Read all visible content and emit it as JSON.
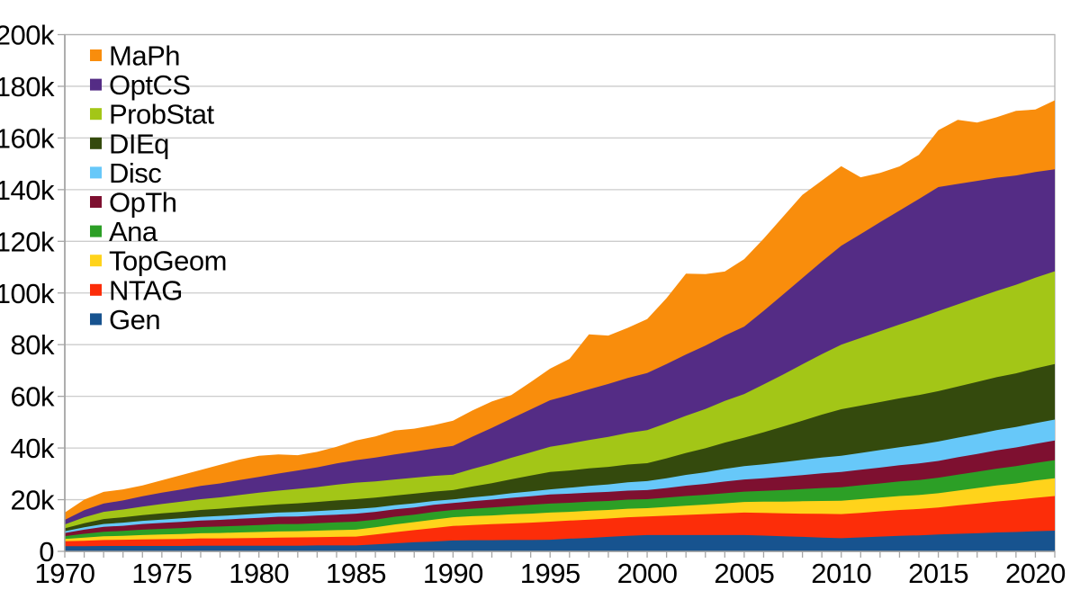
{
  "page": {
    "background": "#ffffff",
    "description": "Stacked area chart of item counts per category per year, 1970-2021"
  },
  "chart_data": {
    "type": "area",
    "stacked": true,
    "title": "",
    "xlabel": "",
    "ylabel": "",
    "unit": "thousands",
    "ylim": [
      0,
      200000
    ],
    "grid": "horizontal",
    "legend_position": "top-left",
    "x": [
      1970,
      1971,
      1972,
      1973,
      1974,
      1975,
      1976,
      1977,
      1978,
      1979,
      1980,
      1981,
      1982,
      1983,
      1984,
      1985,
      1986,
      1987,
      1988,
      1989,
      1990,
      1991,
      1992,
      1993,
      1994,
      1995,
      1996,
      1997,
      1998,
      1999,
      2000,
      2001,
      2002,
      2003,
      2004,
      2005,
      2006,
      2007,
      2008,
      2009,
      2010,
      2011,
      2012,
      2013,
      2014,
      2015,
      2016,
      2017,
      2018,
      2019,
      2020,
      2021
    ],
    "x_tick_labels": [
      "1970",
      "1975",
      "1980",
      "1985",
      "1990",
      "1995",
      "2000",
      "2005",
      "2010",
      "2015",
      "2020"
    ],
    "y_tick_labels": [
      "0",
      "20k",
      "40k",
      "60k",
      "80k",
      "100k",
      "120k",
      "140k",
      "160k",
      "180k",
      "200k"
    ],
    "y_tick_values_k": [
      0,
      20,
      40,
      60,
      80,
      100,
      120,
      140,
      160,
      180,
      200
    ],
    "legend_order_top_to_bottom": [
      "MaPh",
      "OptCS",
      "ProbStat",
      "DIEq",
      "Disc",
      "OpTh",
      "Ana",
      "TopGeom",
      "NTAG",
      "Gen"
    ],
    "series_bottom_to_top": [
      {
        "name": "Gen",
        "color": "#17538F",
        "values_k": [
          2.0,
          2.0,
          2.1,
          2.1,
          2.1,
          2.1,
          2.1,
          2.2,
          2.2,
          2.2,
          2.2,
          2.2,
          2.2,
          2.3,
          2.3,
          2.3,
          2.7,
          3.1,
          3.5,
          3.8,
          4.2,
          4.3,
          4.3,
          4.4,
          4.4,
          4.5,
          4.9,
          5.2,
          5.6,
          6.0,
          6.3,
          6.3,
          6.3,
          6.3,
          6.3,
          6.3,
          6.1,
          5.8,
          5.6,
          5.3,
          5.1,
          5.4,
          5.7,
          6.0,
          6.2,
          6.5,
          6.8,
          7.0,
          7.3,
          7.5,
          7.8,
          8.0
        ]
      },
      {
        "name": "NTAG",
        "color": "#FC2D09",
        "values_k": [
          1.9,
          2.1,
          2.3,
          2.4,
          2.5,
          2.6,
          2.7,
          2.8,
          2.8,
          2.9,
          3.0,
          3.1,
          3.2,
          3.2,
          3.3,
          3.4,
          3.8,
          4.3,
          4.7,
          5.2,
          5.6,
          5.9,
          6.2,
          6.4,
          6.7,
          7.0,
          7.0,
          7.1,
          7.1,
          7.2,
          7.2,
          7.5,
          7.8,
          8.1,
          8.4,
          8.7,
          8.8,
          8.9,
          9.0,
          9.2,
          9.3,
          9.5,
          9.8,
          10.0,
          10.2,
          10.5,
          11.0,
          11.5,
          12.0,
          12.4,
          12.9,
          13.4
        ]
      },
      {
        "name": "TopGeom",
        "color": "#FFD31B",
        "values_k": [
          0.9,
          1.2,
          1.4,
          1.5,
          1.7,
          1.8,
          1.9,
          2.0,
          2.1,
          2.2,
          2.3,
          2.4,
          2.4,
          2.5,
          2.6,
          2.7,
          2.8,
          3.0,
          3.1,
          3.3,
          3.4,
          3.4,
          3.4,
          3.5,
          3.5,
          3.5,
          3.4,
          3.4,
          3.3,
          3.3,
          3.2,
          3.4,
          3.6,
          3.7,
          3.9,
          4.1,
          4.3,
          4.5,
          4.8,
          5.0,
          5.2,
          5.3,
          5.3,
          5.4,
          5.4,
          5.5,
          5.7,
          6.0,
          6.2,
          6.4,
          6.7,
          6.9
        ]
      },
      {
        "name": "Ana",
        "color": "#2C9F26",
        "values_k": [
          1.1,
          1.5,
          1.8,
          1.9,
          2.1,
          2.2,
          2.3,
          2.4,
          2.5,
          2.6,
          2.7,
          2.8,
          2.8,
          2.9,
          3.0,
          3.1,
          3.0,
          3.0,
          2.9,
          2.9,
          2.8,
          2.9,
          3.1,
          3.2,
          3.4,
          3.5,
          3.5,
          3.5,
          3.5,
          3.5,
          3.5,
          3.6,
          3.7,
          3.8,
          3.9,
          4.0,
          4.2,
          4.5,
          4.7,
          5.0,
          5.2,
          5.4,
          5.5,
          5.7,
          5.8,
          6.0,
          6.2,
          6.3,
          6.5,
          6.7,
          6.8,
          7.0
        ]
      },
      {
        "name": "OpTh",
        "color": "#7E1030",
        "values_k": [
          1.2,
          1.6,
          1.9,
          2.0,
          2.2,
          2.3,
          2.4,
          2.5,
          2.6,
          2.7,
          2.8,
          2.9,
          2.9,
          3.0,
          3.0,
          3.1,
          3.0,
          2.9,
          2.8,
          2.8,
          2.7,
          2.9,
          3.0,
          3.2,
          3.3,
          3.5,
          3.5,
          3.5,
          3.5,
          3.5,
          3.5,
          3.7,
          4.0,
          4.2,
          4.5,
          4.7,
          4.9,
          5.2,
          5.4,
          5.7,
          5.9,
          6.0,
          6.1,
          6.2,
          6.4,
          6.5,
          6.7,
          6.9,
          7.1,
          7.2,
          7.4,
          7.6
        ]
      },
      {
        "name": "Disc",
        "color": "#67C8F9",
        "values_k": [
          0.7,
          0.9,
          1.1,
          1.2,
          1.2,
          1.3,
          1.4,
          1.4,
          1.5,
          1.5,
          1.6,
          1.6,
          1.7,
          1.7,
          1.8,
          1.8,
          1.7,
          1.6,
          1.6,
          1.5,
          1.4,
          1.5,
          1.6,
          1.8,
          1.9,
          2.0,
          2.3,
          2.6,
          2.9,
          3.2,
          3.5,
          3.8,
          4.2,
          4.5,
          4.9,
          5.2,
          5.4,
          5.6,
          5.9,
          6.1,
          6.3,
          6.5,
          6.8,
          7.0,
          7.3,
          7.5,
          7.6,
          7.7,
          7.8,
          7.9,
          8.0,
          8.1
        ]
      },
      {
        "name": "DIEq",
        "color": "#344A0D",
        "values_k": [
          1.1,
          1.6,
          1.9,
          2.1,
          2.2,
          2.4,
          2.5,
          2.7,
          2.8,
          3.0,
          3.1,
          3.2,
          3.4,
          3.5,
          3.7,
          3.8,
          3.8,
          3.7,
          3.7,
          3.6,
          3.6,
          4.2,
          4.8,
          5.4,
          6.1,
          6.7,
          6.7,
          6.8,
          6.8,
          6.9,
          6.9,
          7.7,
          8.5,
          9.3,
          10.2,
          11.0,
          12.4,
          13.8,
          15.2,
          16.6,
          18.0,
          18.3,
          18.6,
          18.9,
          19.2,
          19.5,
          19.8,
          20.2,
          20.5,
          20.8,
          21.2,
          21.5
        ]
      },
      {
        "name": "ProbStat",
        "color": "#A3C617",
        "values_k": [
          1.5,
          2.3,
          2.8,
          3.0,
          3.3,
          3.6,
          3.9,
          4.2,
          4.4,
          4.7,
          5.0,
          5.3,
          5.6,
          5.8,
          6.1,
          6.4,
          6.3,
          6.2,
          6.2,
          6.1,
          6.0,
          6.8,
          7.5,
          8.3,
          9.0,
          9.8,
          10.4,
          11.0,
          11.6,
          12.2,
          12.8,
          13.6,
          14.4,
          15.2,
          16.1,
          16.9,
          18.5,
          20.1,
          21.8,
          23.4,
          25.0,
          26.2,
          27.4,
          28.6,
          29.8,
          31.0,
          31.8,
          32.6,
          33.4,
          34.3,
          35.1,
          35.9
        ]
      },
      {
        "name": "OptCS",
        "color": "#542C85",
        "values_k": [
          1.8,
          2.7,
          3.2,
          3.5,
          4.0,
          4.4,
          4.7,
          5.1,
          5.4,
          5.8,
          6.1,
          6.6,
          7.1,
          7.6,
          8.2,
          8.7,
          9.2,
          9.7,
          10.1,
          10.6,
          11.1,
          12.5,
          13.9,
          15.2,
          16.6,
          18.0,
          18.8,
          19.6,
          20.5,
          21.3,
          22.1,
          22.9,
          23.7,
          24.5,
          25.3,
          26.1,
          28.5,
          31.0,
          33.4,
          35.9,
          38.3,
          40.2,
          42.2,
          44.1,
          46.1,
          48.0,
          46.6,
          45.2,
          43.8,
          42.3,
          40.9,
          39.5
        ]
      },
      {
        "name": "MaPh",
        "color": "#F98D0C",
        "values_k": [
          2.8,
          4.1,
          4.5,
          4.3,
          4.2,
          4.8,
          5.6,
          6.2,
          7.2,
          7.9,
          8.2,
          7.4,
          5.9,
          6.0,
          6.5,
          7.6,
          8.2,
          9.3,
          8.9,
          9.0,
          9.8,
          10.1,
          10.2,
          9.1,
          10.6,
          12.2,
          14.0,
          21.3,
          18.7,
          19.4,
          20.9,
          25.5,
          31.3,
          27.7,
          24.8,
          26.1,
          27.9,
          30.1,
          32.2,
          31.3,
          30.8,
          22.0,
          19.1,
          17.1,
          17.1,
          22.0,
          24.8,
          22.6,
          23.4,
          25.0,
          24.2,
          26.7
        ]
      }
    ]
  },
  "style": {
    "grid_color": "#cccccc",
    "border_color": "#b3b3b3",
    "axis_color": "#9a9a9a",
    "tick_color": "#a6a6a6",
    "text_color": "#000000"
  }
}
